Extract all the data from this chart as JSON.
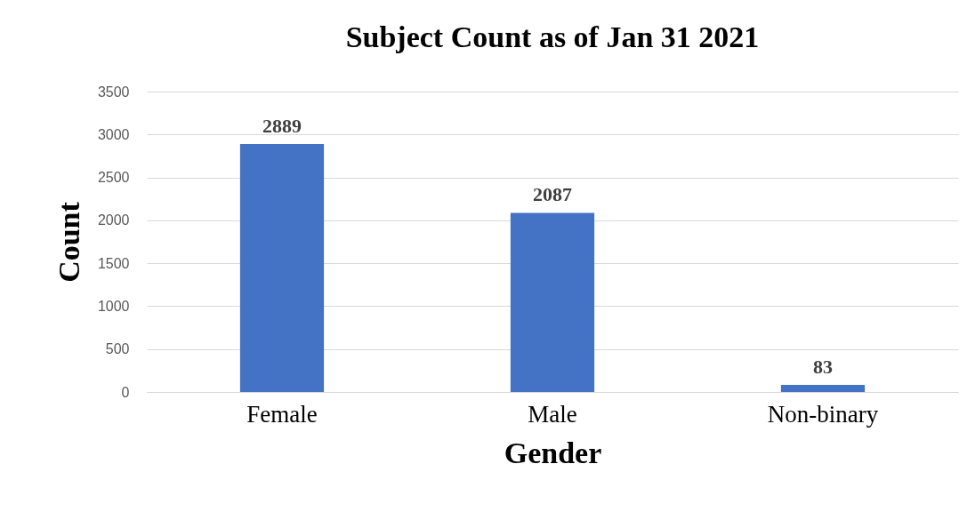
{
  "chart_data": {
    "type": "bar",
    "title": "Subject Count as of Jan 31 2021",
    "xlabel": "Gender",
    "ylabel": "Count",
    "categories": [
      "Female",
      "Male",
      "Non-binary"
    ],
    "values": [
      2889,
      2087,
      83
    ],
    "color": "#4472c4",
    "ylim": [
      0,
      3500
    ],
    "yticks": [
      0,
      500,
      1000,
      1500,
      2000,
      2500,
      3000,
      3500
    ],
    "grid": "y",
    "data_labels": true
  }
}
